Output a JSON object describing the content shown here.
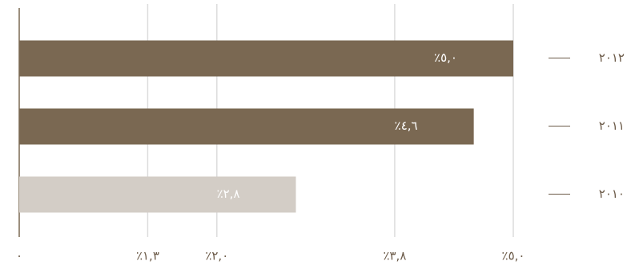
{
  "chart_data": {
    "type": "bar",
    "orientation": "horizontal",
    "categories": [
      "٢٠١٢",
      "٢٠١١",
      "٢٠١٠"
    ],
    "values": [
      5.0,
      4.6,
      2.8
    ],
    "value_labels": [
      "٪٥,٠",
      "٪٤,٦",
      "٪٢,٨"
    ],
    "colors": [
      "#7a6852",
      "#7a6852",
      "#d3cdc6"
    ],
    "xlim": [
      0,
      5.0
    ],
    "xticks": [
      {
        "value": 0,
        "label": "٠"
      },
      {
        "value": 1.3,
        "label": "٪١,٣"
      },
      {
        "value": 2.0,
        "label": "٪٢,٠"
      },
      {
        "value": 3.8,
        "label": "٪٣,٨"
      },
      {
        "value": 5.0,
        "label": "٪٥,٠"
      }
    ],
    "grid": true
  }
}
